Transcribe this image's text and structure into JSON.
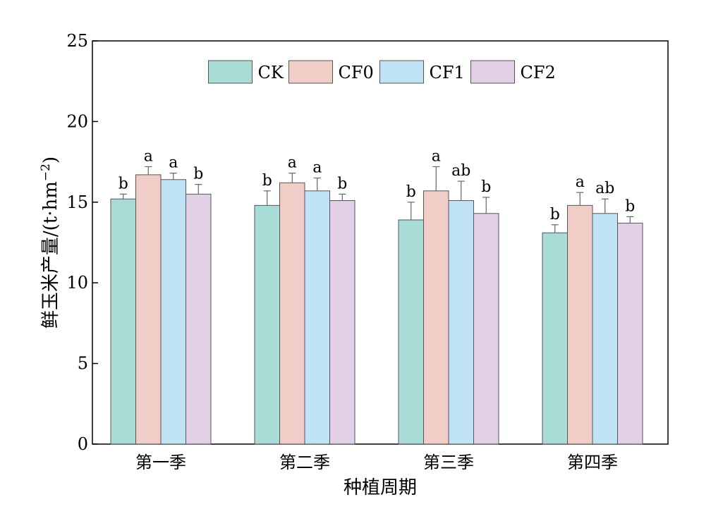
{
  "chart_data": {
    "type": "bar",
    "title": "",
    "xlabel": "种植周期",
    "ylabel": "鲜玉米产量/(t·hm",
    "ylabel_sup": "−2",
    "ylabel_close": ")",
    "ylim": [
      0,
      25
    ],
    "yticks": [
      0,
      5,
      10,
      15,
      20,
      25
    ],
    "grid": false,
    "legend_position": "top",
    "categories": [
      "第一季",
      "第二季",
      "第三季",
      "第四季"
    ],
    "series": [
      {
        "name": "CK",
        "color": "#a9dcd6",
        "values": [
          15.2,
          14.8,
          13.9,
          13.1
        ],
        "errors": [
          0.3,
          0.9,
          1.1,
          0.5
        ],
        "labels": [
          "b",
          "b",
          "b",
          "b"
        ]
      },
      {
        "name": "CF0",
        "color": "#f0cdc6",
        "values": [
          16.7,
          16.2,
          15.7,
          14.8
        ],
        "errors": [
          0.5,
          0.6,
          1.5,
          0.8
        ],
        "labels": [
          "a",
          "a",
          "a",
          "a"
        ]
      },
      {
        "name": "CF1",
        "color": "#bfe3f5",
        "values": [
          16.4,
          15.7,
          15.1,
          14.3
        ],
        "errors": [
          0.4,
          0.8,
          1.2,
          0.9
        ],
        "labels": [
          "a",
          "a",
          "ab",
          "ab"
        ]
      },
      {
        "name": "CF2",
        "color": "#e2d0e6",
        "values": [
          15.5,
          15.1,
          14.3,
          13.7
        ],
        "errors": [
          0.6,
          0.4,
          1.0,
          0.4
        ],
        "labels": [
          "b",
          "b",
          "b",
          "b"
        ]
      }
    ]
  }
}
